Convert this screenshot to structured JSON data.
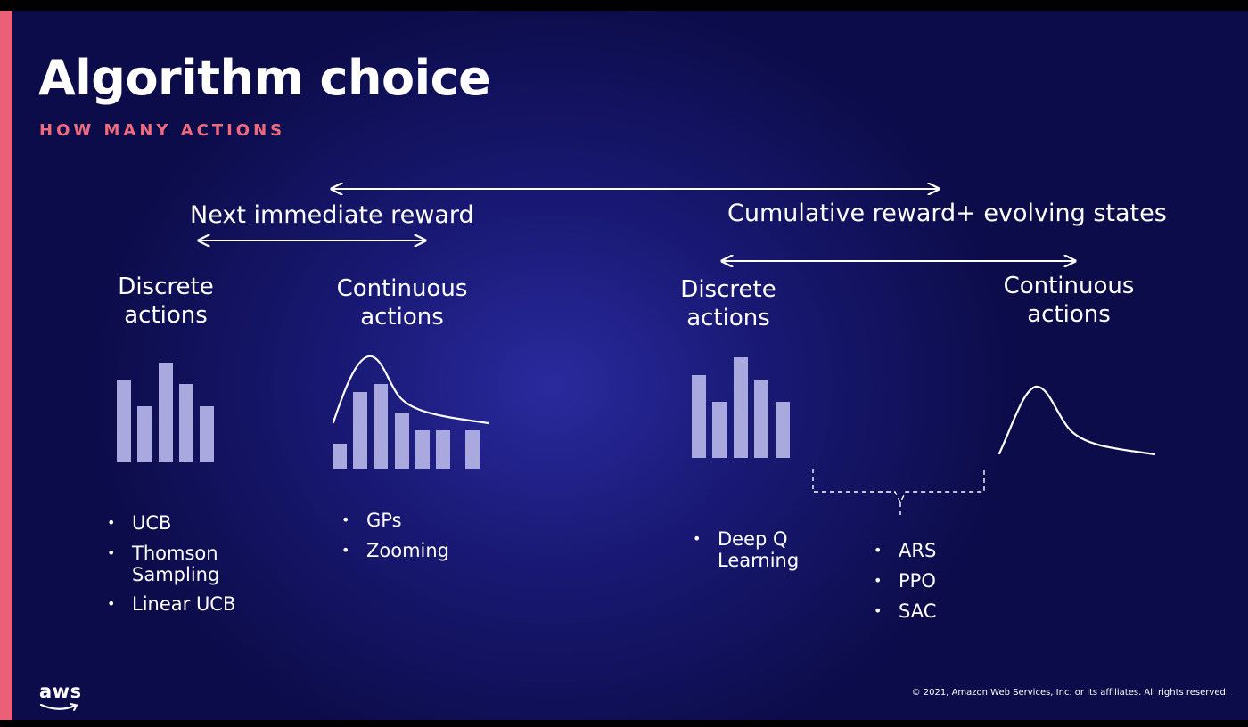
{
  "slide": {
    "title": "Algorithm choice",
    "subtitle": "HOW MANY ACTIONS",
    "left_group": {
      "heading": "Next immediate reward",
      "discrete": {
        "label_line1": "Discrete",
        "label_line2": "actions",
        "algorithms": [
          "UCB",
          "Thomson",
          "Sampling",
          "Linear UCB"
        ]
      },
      "continuous": {
        "label_line1": "Continuous",
        "label_line2": "actions",
        "algorithms": [
          "GPs",
          "Zooming"
        ]
      }
    },
    "right_group": {
      "heading": "Cumulative reward+ evolving states",
      "discrete": {
        "label_line1": "Discrete",
        "label_line2": "actions",
        "algorithms": [
          "Deep Q",
          "Learning"
        ]
      },
      "continuous": {
        "label_line1": "Continuous",
        "label_line2": "actions"
      },
      "shared_algorithms": [
        "ARS",
        "PPO",
        "SAC"
      ]
    },
    "logo_text": "aws",
    "copyright": "© 2021, Amazon Web Services, Inc. or its affiliates. All rights reserved.",
    "colors": {
      "background": "#191975",
      "accent": "#ec5f79",
      "subtitle": "#f06a7e",
      "bars": "#a9a9e0",
      "text": "#ffffff"
    },
    "icons": {
      "arrows": "double-headed-arrow-icon",
      "brace": "dashed-brace-icon",
      "curve": "distribution-curve-icon"
    }
  }
}
